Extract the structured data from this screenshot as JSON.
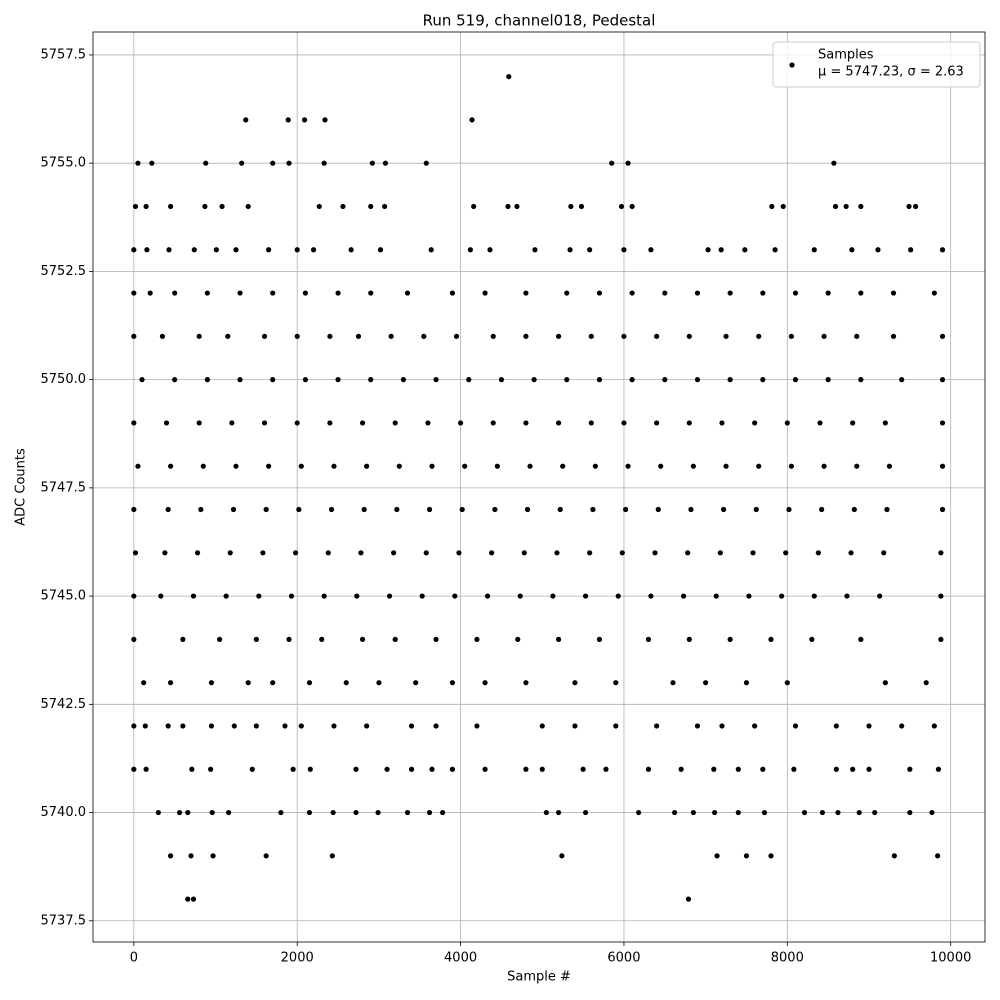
{
  "chart_data": {
    "type": "scatter",
    "title": "Run 519, channel018, Pedestal",
    "x_label": "Sample #",
    "y_label": "ADC Counts",
    "series": [
      {
        "name": "Samples",
        "color": "#000000",
        "x": [
          4590,
          1370,
          1890,
          2090,
          2340,
          4140,
          50,
          220,
          880,
          1320,
          1700,
          1900,
          2330,
          2920,
          3080,
          3580,
          5850,
          6050,
          8570,
          20,
          150,
          450,
          870,
          1080,
          1400,
          2270,
          2560,
          2900,
          3070,
          4160,
          4580,
          4690,
          5350,
          5480,
          5970,
          6100,
          7810,
          7950,
          8590,
          8720,
          8900,
          9490,
          9570,
          0,
          160,
          430,
          740,
          1010,
          1250,
          1650,
          2000,
          2200,
          2660,
          3020,
          3640,
          4120,
          4360,
          4910,
          5340,
          5580,
          6000,
          6330,
          7030,
          7190,
          7480,
          7850,
          8330,
          8790,
          9110,
          9510,
          9900,
          0,
          200,
          500,
          900,
          1300,
          1700,
          2100,
          2500,
          2900,
          3350,
          3900,
          4300,
          4800,
          5300,
          5700,
          6100,
          6500,
          6900,
          7300,
          7700,
          8100,
          8500,
          8900,
          9300,
          9800,
          0,
          350,
          800,
          1150,
          1600,
          2000,
          2400,
          2750,
          3150,
          3550,
          3950,
          4400,
          4800,
          5200,
          5600,
          6000,
          6400,
          6800,
          7250,
          7650,
          8050,
          8450,
          8850,
          9300,
          9900,
          100,
          500,
          900,
          1300,
          1700,
          2100,
          2500,
          2900,
          3300,
          3700,
          4100,
          4500,
          4900,
          5300,
          5700,
          6100,
          6500,
          6900,
          7300,
          7700,
          8100,
          8500,
          8900,
          9400,
          9900,
          0,
          400,
          800,
          1200,
          1600,
          2000,
          2400,
          2800,
          3200,
          3600,
          4000,
          4400,
          4800,
          5200,
          5600,
          6000,
          6400,
          6800,
          7200,
          7600,
          8000,
          8400,
          8800,
          9200,
          9900,
          50,
          450,
          850,
          1250,
          1650,
          2050,
          2450,
          2850,
          3250,
          3650,
          4050,
          4450,
          4850,
          5250,
          5650,
          6050,
          6450,
          6850,
          7250,
          7650,
          8050,
          8450,
          8850,
          9250,
          9900,
          0,
          420,
          820,
          1220,
          1620,
          2020,
          2420,
          2820,
          3220,
          3620,
          4020,
          4420,
          4820,
          5220,
          5620,
          6020,
          6420,
          6820,
          7220,
          7620,
          8020,
          8420,
          8820,
          9220,
          9900,
          20,
          380,
          780,
          1180,
          1580,
          1980,
          2380,
          2780,
          3180,
          3580,
          3980,
          4380,
          4780,
          5180,
          5580,
          5980,
          6380,
          6780,
          7180,
          7580,
          7980,
          8380,
          8780,
          9180,
          9880,
          0,
          330,
          730,
          1130,
          1530,
          1930,
          2330,
          2730,
          3130,
          3530,
          3930,
          4330,
          4730,
          5130,
          5530,
          5930,
          6330,
          6730,
          7130,
          7530,
          7930,
          8330,
          8730,
          9130,
          9880,
          0,
          600,
          1050,
          1500,
          1900,
          2300,
          2800,
          3200,
          3700,
          4200,
          4700,
          5200,
          5700,
          6300,
          6800,
          7300,
          7800,
          8300,
          8900,
          9880,
          120,
          450,
          950,
          1400,
          1700,
          2150,
          2600,
          3000,
          3450,
          3900,
          4300,
          4800,
          5400,
          5900,
          6600,
          7000,
          7500,
          8000,
          9200,
          9700,
          0,
          140,
          420,
          600,
          950,
          1230,
          1500,
          1850,
          2050,
          2450,
          2850,
          3400,
          3700,
          4200,
          5000,
          5400,
          5900,
          6400,
          6900,
          7200,
          7600,
          8100,
          8600,
          9000,
          9400,
          9800,
          0,
          150,
          710,
          940,
          1450,
          1950,
          2160,
          2720,
          3100,
          3400,
          3650,
          3900,
          4300,
          4800,
          5000,
          5500,
          5780,
          6300,
          6700,
          7100,
          7400,
          7700,
          8080,
          8600,
          8800,
          9000,
          9500,
          9850,
          300,
          560,
          660,
          960,
          1160,
          1800,
          2150,
          2440,
          2720,
          2990,
          3350,
          3620,
          3780,
          5050,
          5200,
          5530,
          6180,
          6620,
          6850,
          7110,
          7400,
          7720,
          8210,
          8430,
          8620,
          8880,
          9070,
          9500,
          9770,
          450,
          700,
          970,
          1620,
          2430,
          5240,
          7140,
          7500,
          7800,
          9310,
          9840,
          660,
          730,
          6790
        ],
        "values": [
          5757,
          5756,
          5756,
          5756,
          5756,
          5756,
          5755,
          5755,
          5755,
          5755,
          5755,
          5755,
          5755,
          5755,
          5755,
          5755,
          5755,
          5755,
          5755,
          5754,
          5754,
          5754,
          5754,
          5754,
          5754,
          5754,
          5754,
          5754,
          5754,
          5754,
          5754,
          5754,
          5754,
          5754,
          5754,
          5754,
          5754,
          5754,
          5754,
          5754,
          5754,
          5754,
          5754,
          5753,
          5753,
          5753,
          5753,
          5753,
          5753,
          5753,
          5753,
          5753,
          5753,
          5753,
          5753,
          5753,
          5753,
          5753,
          5753,
          5753,
          5753,
          5753,
          5753,
          5753,
          5753,
          5753,
          5753,
          5753,
          5753,
          5753,
          5753,
          5752,
          5752,
          5752,
          5752,
          5752,
          5752,
          5752,
          5752,
          5752,
          5752,
          5752,
          5752,
          5752,
          5752,
          5752,
          5752,
          5752,
          5752,
          5752,
          5752,
          5752,
          5752,
          5752,
          5752,
          5752,
          5751,
          5751,
          5751,
          5751,
          5751,
          5751,
          5751,
          5751,
          5751,
          5751,
          5751,
          5751,
          5751,
          5751,
          5751,
          5751,
          5751,
          5751,
          5751,
          5751,
          5751,
          5751,
          5751,
          5751,
          5751,
          5750,
          5750,
          5750,
          5750,
          5750,
          5750,
          5750,
          5750,
          5750,
          5750,
          5750,
          5750,
          5750,
          5750,
          5750,
          5750,
          5750,
          5750,
          5750,
          5750,
          5750,
          5750,
          5750,
          5750,
          5750,
          5749,
          5749,
          5749,
          5749,
          5749,
          5749,
          5749,
          5749,
          5749,
          5749,
          5749,
          5749,
          5749,
          5749,
          5749,
          5749,
          5749,
          5749,
          5749,
          5749,
          5749,
          5749,
          5749,
          5749,
          5749,
          5748,
          5748,
          5748,
          5748,
          5748,
          5748,
          5748,
          5748,
          5748,
          5748,
          5748,
          5748,
          5748,
          5748,
          5748,
          5748,
          5748,
          5748,
          5748,
          5748,
          5748,
          5748,
          5748,
          5748,
          5748,
          5747,
          5747,
          5747,
          5747,
          5747,
          5747,
          5747,
          5747,
          5747,
          5747,
          5747,
          5747,
          5747,
          5747,
          5747,
          5747,
          5747,
          5747,
          5747,
          5747,
          5747,
          5747,
          5747,
          5747,
          5747,
          5746,
          5746,
          5746,
          5746,
          5746,
          5746,
          5746,
          5746,
          5746,
          5746,
          5746,
          5746,
          5746,
          5746,
          5746,
          5746,
          5746,
          5746,
          5746,
          5746,
          5746,
          5746,
          5746,
          5746,
          5746,
          5745,
          5745,
          5745,
          5745,
          5745,
          5745,
          5745,
          5745,
          5745,
          5745,
          5745,
          5745,
          5745,
          5745,
          5745,
          5745,
          5745,
          5745,
          5745,
          5745,
          5745,
          5745,
          5745,
          5745,
          5745,
          5744,
          5744,
          5744,
          5744,
          5744,
          5744,
          5744,
          5744,
          5744,
          5744,
          5744,
          5744,
          5744,
          5744,
          5744,
          5744,
          5744,
          5744,
          5744,
          5744,
          5743,
          5743,
          5743,
          5743,
          5743,
          5743,
          5743,
          5743,
          5743,
          5743,
          5743,
          5743,
          5743,
          5743,
          5743,
          5743,
          5743,
          5743,
          5743,
          5743,
          5742,
          5742,
          5742,
          5742,
          5742,
          5742,
          5742,
          5742,
          5742,
          5742,
          5742,
          5742,
          5742,
          5742,
          5742,
          5742,
          5742,
          5742,
          5742,
          5742,
          5742,
          5742,
          5742,
          5742,
          5742,
          5742,
          5741,
          5741,
          5741,
          5741,
          5741,
          5741,
          5741,
          5741,
          5741,
          5741,
          5741,
          5741,
          5741,
          5741,
          5741,
          5741,
          5741,
          5741,
          5741,
          5741,
          5741,
          5741,
          5741,
          5741,
          5741,
          5741,
          5741,
          5741,
          5740,
          5740,
          5740,
          5740,
          5740,
          5740,
          5740,
          5740,
          5740,
          5740,
          5740,
          5740,
          5740,
          5740,
          5740,
          5740,
          5740,
          5740,
          5740,
          5740,
          5740,
          5740,
          5740,
          5740,
          5740,
          5740,
          5740,
          5740,
          5740,
          5739,
          5739,
          5739,
          5739,
          5739,
          5739,
          5739,
          5739,
          5739,
          5739,
          5739,
          5738,
          5738,
          5738
        ]
      }
    ],
    "legend_note": "μ = 5747.23, σ = 2.63",
    "legend": "upper right",
    "grid": true,
    "xlim": [
      -500,
      10420
    ],
    "xticks": [
      0,
      2000,
      4000,
      6000,
      8000,
      10000
    ],
    "ylim": [
      5737.01,
      5758.03
    ],
    "yticks": [
      5737.5,
      {
        "value": 5740,
        "label": "5740.0"
      },
      5742.5,
      {
        "value": 5745,
        "label": "5745.0"
      },
      5747.5,
      {
        "value": 5750,
        "label": "5750.0"
      },
      5752.5,
      {
        "value": 5755,
        "label": "5755.0"
      },
      5757.5
    ]
  }
}
